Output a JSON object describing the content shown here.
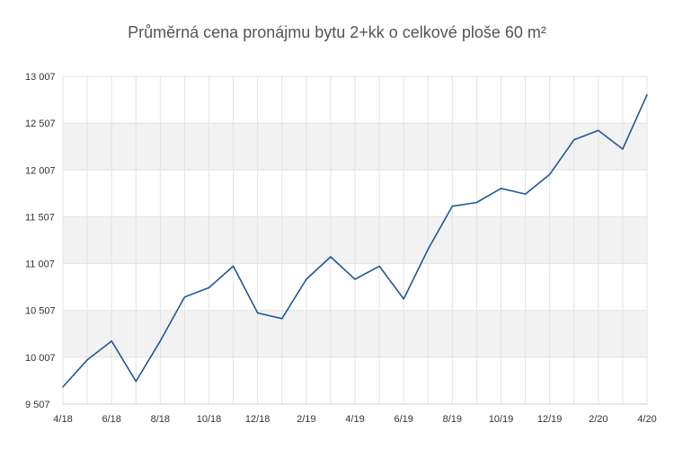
{
  "chart_data": {
    "type": "line",
    "title": "Průměrná cena pronájmu bytu 2+kk o celkové ploše 60 m²",
    "xlabel": "",
    "ylabel": "",
    "x": [
      "4/18",
      "5/18",
      "6/18",
      "7/18",
      "8/18",
      "9/18",
      "10/18",
      "11/18",
      "12/18",
      "1/19",
      "2/19",
      "3/19",
      "4/19",
      "5/19",
      "6/19",
      "7/19",
      "8/19",
      "9/19",
      "10/19",
      "11/19",
      "12/19",
      "1/20",
      "2/20",
      "3/20",
      "4/20"
    ],
    "x_tick_labels": [
      "4/18",
      "6/18",
      "8/18",
      "10/18",
      "12/18",
      "2/19",
      "4/19",
      "6/19",
      "8/19",
      "10/19",
      "12/19",
      "2/20",
      "4/20"
    ],
    "series": [
      {
        "values": [
          9690,
          9980,
          10180,
          9750,
          10180,
          10650,
          10750,
          10980,
          10480,
          10420,
          10840,
          11080,
          10840,
          10980,
          10630,
          11160,
          11620,
          11660,
          11810,
          11750,
          11960,
          12330,
          12430,
          12230,
          12810
        ]
      }
    ],
    "y_ticks": [
      9507,
      10007,
      10507,
      11007,
      11507,
      12007,
      12507,
      13007
    ],
    "y_tick_labels": [
      "9 507",
      "10 007",
      "10 507",
      "11 007",
      "11 507",
      "12 007",
      "12 507",
      "13 007"
    ],
    "ylim": [
      9507,
      13007
    ],
    "grid": true,
    "colors": {
      "line": "#1f5a96",
      "band": "#f2f2f2",
      "grid": "#e3e3e3",
      "axis": "#cccccc"
    }
  }
}
